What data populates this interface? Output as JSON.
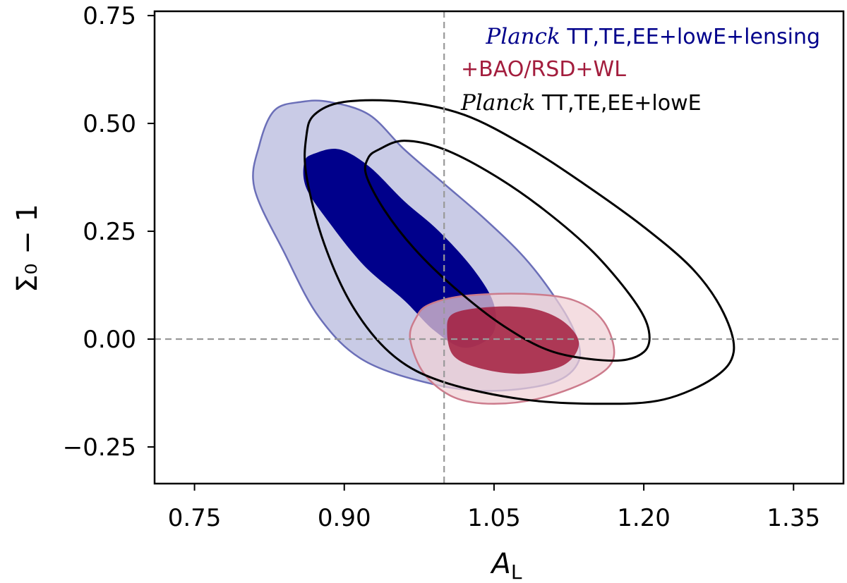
{
  "chart_data": {
    "type": "contour",
    "xlabel": "A",
    "xlabel_sub": "L",
    "ylabel": "Σ₀ − 1",
    "xlim": [
      0.71,
      1.4
    ],
    "ylim": [
      -0.335,
      0.76
    ],
    "x_ticks": [
      0.75,
      0.9,
      1.05,
      1.2,
      1.35
    ],
    "x_tick_labels": [
      "0.75",
      "0.90",
      "1.05",
      "1.20",
      "1.35"
    ],
    "y_ticks": [
      0.75,
      0.5,
      0.25,
      0.0,
      -0.25
    ],
    "y_tick_labels": [
      "0.75",
      "0.50",
      "0.25",
      "0.00",
      "−0.25"
    ],
    "reference_lines": {
      "x": 1.0,
      "y": 0.0,
      "style": "dashed",
      "color": "#999999"
    },
    "legend": {
      "placement": "top-right",
      "entries": [
        {
          "italic": "Planck",
          "text": " TT,TE,EE+lowE+lensing",
          "color": "#00008b"
        },
        {
          "italic": "",
          "text": "+BAO/RSD+WL",
          "color": "#a31d3d"
        },
        {
          "italic": "Planck",
          "text": " TT,TE,EE+lowE",
          "color": "#000000"
        }
      ]
    },
    "series": [
      {
        "name": "Planck TT,TE,EE+lowE+lensing",
        "style": "filled",
        "color_68": "#00008b",
        "color_95": "#c9cbe6",
        "edge_95": "#6b6fb8",
        "contour_95": [
          [
            0.857,
            0.55
          ],
          [
            0.885,
            0.55
          ],
          [
            0.925,
            0.52
          ],
          [
            0.96,
            0.44
          ],
          [
            1.0,
            0.36
          ],
          [
            1.04,
            0.28
          ],
          [
            1.08,
            0.19
          ],
          [
            1.11,
            0.1
          ],
          [
            1.13,
            0.02
          ],
          [
            1.135,
            -0.05
          ],
          [
            1.11,
            -0.1
          ],
          [
            1.05,
            -0.12
          ],
          [
            0.99,
            -0.105
          ],
          [
            0.92,
            -0.05
          ],
          [
            0.875,
            0.05
          ],
          [
            0.84,
            0.2
          ],
          [
            0.81,
            0.35
          ],
          [
            0.815,
            0.45
          ],
          [
            0.83,
            0.53
          ]
        ],
        "contour_68": [
          [
            0.87,
            0.43
          ],
          [
            0.895,
            0.44
          ],
          [
            0.925,
            0.4
          ],
          [
            0.96,
            0.32
          ],
          [
            0.995,
            0.25
          ],
          [
            1.03,
            0.16
          ],
          [
            1.05,
            0.08
          ],
          [
            1.048,
            0.01
          ],
          [
            1.02,
            -0.02
          ],
          [
            0.99,
            0.02
          ],
          [
            0.96,
            0.09
          ],
          [
            0.92,
            0.17
          ],
          [
            0.885,
            0.27
          ],
          [
            0.862,
            0.35
          ],
          [
            0.86,
            0.41
          ]
        ]
      },
      {
        "name": "+BAO/RSD+WL",
        "style": "filled",
        "color_68": "#a31d3d",
        "color_95": "#f0d0d6",
        "edge_95": "#cc7b8c",
        "contour_95": [
          [
            0.985,
            0.08
          ],
          [
            1.02,
            0.1
          ],
          [
            1.08,
            0.105
          ],
          [
            1.13,
            0.09
          ],
          [
            1.16,
            0.04
          ],
          [
            1.17,
            -0.04
          ],
          [
            1.15,
            -0.09
          ],
          [
            1.1,
            -0.135
          ],
          [
            1.05,
            -0.15
          ],
          [
            1.01,
            -0.135
          ],
          [
            0.98,
            -0.08
          ],
          [
            0.966,
            0.0
          ],
          [
            0.972,
            0.05
          ]
        ],
        "contour_68": [
          [
            1.01,
            0.06
          ],
          [
            1.05,
            0.075
          ],
          [
            1.09,
            0.07
          ],
          [
            1.12,
            0.04
          ],
          [
            1.135,
            -0.01
          ],
          [
            1.12,
            -0.06
          ],
          [
            1.08,
            -0.08
          ],
          [
            1.04,
            -0.07
          ],
          [
            1.01,
            -0.04
          ],
          [
            1.003,
            0.02
          ]
        ]
      },
      {
        "name": "Planck TT,TE,EE+lowE",
        "style": "line",
        "color_68": "#000000",
        "color_95": "#000000",
        "contour_95": [
          [
            0.87,
            0.52
          ],
          [
            0.9,
            0.55
          ],
          [
            0.96,
            0.55
          ],
          [
            1.02,
            0.52
          ],
          [
            1.08,
            0.45
          ],
          [
            1.14,
            0.36
          ],
          [
            1.2,
            0.26
          ],
          [
            1.25,
            0.16
          ],
          [
            1.28,
            0.06
          ],
          [
            1.29,
            -0.03
          ],
          [
            1.27,
            -0.09
          ],
          [
            1.22,
            -0.14
          ],
          [
            1.16,
            -0.15
          ],
          [
            1.08,
            -0.14
          ],
          [
            1.0,
            -0.1
          ],
          [
            0.95,
            -0.04
          ],
          [
            0.91,
            0.07
          ],
          [
            0.88,
            0.22
          ],
          [
            0.862,
            0.38
          ],
          [
            0.862,
            0.47
          ]
        ],
        "contour_68": [
          [
            0.935,
            0.44
          ],
          [
            0.96,
            0.46
          ],
          [
            1.0,
            0.44
          ],
          [
            1.05,
            0.38
          ],
          [
            1.1,
            0.3
          ],
          [
            1.15,
            0.2
          ],
          [
            1.19,
            0.09
          ],
          [
            1.205,
            0.02
          ],
          [
            1.2,
            -0.03
          ],
          [
            1.17,
            -0.05
          ],
          [
            1.11,
            -0.03
          ],
          [
            1.06,
            0.03
          ],
          [
            1.01,
            0.12
          ],
          [
            0.97,
            0.21
          ],
          [
            0.94,
            0.3
          ],
          [
            0.922,
            0.38
          ],
          [
            0.924,
            0.42
          ]
        ]
      }
    ]
  }
}
